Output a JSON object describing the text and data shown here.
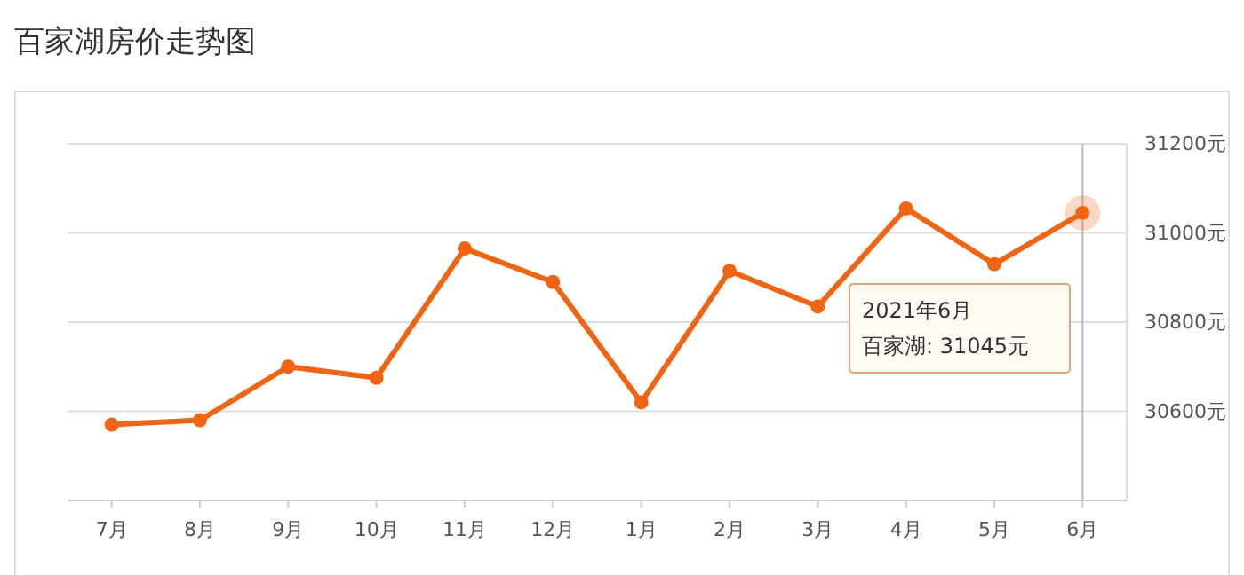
{
  "chart_data": {
    "type": "line",
    "title": "百家湖房价走势图",
    "categories": [
      "7月",
      "8月",
      "9月",
      "10月",
      "11月",
      "12月",
      "1月",
      "2月",
      "3月",
      "4月",
      "5月",
      "6月"
    ],
    "series": [
      {
        "color": "#f06414",
        "values": [
          30570,
          30580,
          30700,
          30675,
          30965,
          30890,
          30620,
          30915,
          30835,
          31055,
          30930,
          31045
        ]
      }
    ],
    "ylim": [
      30400,
      31200
    ],
    "yticks": [
      {
        "value": 30600,
        "label": "30600元"
      },
      {
        "value": 30800,
        "label": "30800元"
      },
      {
        "value": 31000,
        "label": "31000元"
      },
      {
        "value": 31200,
        "label": "31200元"
      }
    ],
    "grid": "y",
    "marker": "circle",
    "line_style": "solid",
    "ref_lines": [
      {
        "axis": "x",
        "value": "6月",
        "color": "#bbbbbb"
      }
    ],
    "annotations": [
      "2021年6月",
      "百家湖: 31045元"
    ]
  }
}
